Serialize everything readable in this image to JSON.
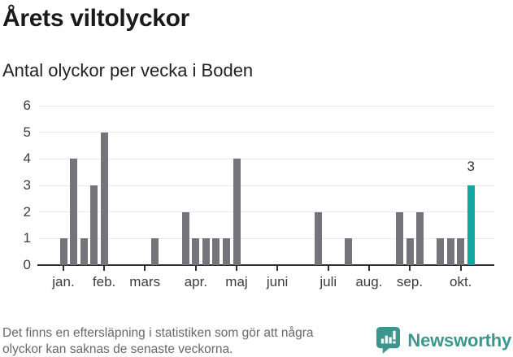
{
  "header": {
    "title": "Årets viltolyckor",
    "subtitle": "Antal olyckor per vecka i Boden"
  },
  "footer": {
    "note_line1": "Det finns en eftersläpning i statistiken som gör att några",
    "note_line2": "olyckor kan saknas de senaste veckorna.",
    "brand": "Newsworthy",
    "brand_color": "#3d968e"
  },
  "chart_data": {
    "type": "bar",
    "title": "Årets viltolyckor",
    "subtitle": "Antal olyckor per vecka i Boden",
    "x_unit": "vecka",
    "ylim": [
      0,
      6
    ],
    "yticks": [
      0,
      1,
      2,
      3,
      4,
      5,
      6
    ],
    "grid": true,
    "legend": false,
    "weeks": [
      1,
      4,
      1,
      3,
      5,
      0,
      0,
      0,
      0,
      1,
      0,
      0,
      2,
      1,
      1,
      1,
      1,
      4,
      0,
      0,
      0,
      0,
      0,
      0,
      0,
      2,
      0,
      0,
      1,
      0,
      0,
      0,
      0,
      2,
      1,
      2,
      0,
      1,
      1,
      1,
      3
    ],
    "months": [
      {
        "label": "jan.",
        "week": 0
      },
      {
        "label": "feb.",
        "week": 4
      },
      {
        "label": "mars",
        "week": 8
      },
      {
        "label": "apr.",
        "week": 13
      },
      {
        "label": "maj",
        "week": 17
      },
      {
        "label": "juni",
        "week": 21
      },
      {
        "label": "juli",
        "week": 26
      },
      {
        "label": "aug.",
        "week": 30
      },
      {
        "label": "sep.",
        "week": 34
      },
      {
        "label": "okt.",
        "week": 39
      }
    ],
    "highlight": {
      "index": 40,
      "value": 3,
      "label": "3"
    },
    "colors": {
      "bar": "#74747a",
      "highlight": "#0fa7a0",
      "grid": "#e9e9e9",
      "axis": "#2f2f2f",
      "tick_text": "#3d3d3d",
      "annotation_text": "#333333"
    }
  }
}
